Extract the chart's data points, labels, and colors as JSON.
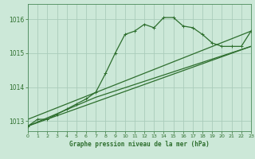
{
  "title": "Graphe pression niveau de la mer (hPa)",
  "background_color": "#cce8d8",
  "plot_bg_color": "#cce8d8",
  "grid_color": "#aaccbb",
  "line_color": "#2d6e2d",
  "spine_color": "#4a8a5a",
  "x_min": 0,
  "x_max": 23,
  "y_min": 1012.7,
  "y_max": 1016.45,
  "yticks": [
    1013,
    1014,
    1015,
    1016
  ],
  "xticks": [
    0,
    1,
    2,
    3,
    4,
    5,
    6,
    7,
    8,
    9,
    10,
    11,
    12,
    13,
    14,
    15,
    16,
    17,
    18,
    19,
    20,
    21,
    22,
    23
  ],
  "series1_x": [
    0,
    1,
    2,
    3,
    4,
    5,
    6,
    7,
    8,
    9,
    10,
    11,
    12,
    13,
    14,
    15,
    16,
    17,
    18,
    19,
    20,
    21,
    22,
    23
  ],
  "series1_y": [
    1012.85,
    1013.05,
    1013.05,
    1013.2,
    1013.35,
    1013.5,
    1013.65,
    1013.85,
    1014.4,
    1015.0,
    1015.55,
    1015.65,
    1015.85,
    1015.75,
    1016.05,
    1016.05,
    1015.8,
    1015.75,
    1015.55,
    1015.3,
    1015.2,
    1015.2,
    1015.2,
    1015.65
  ],
  "series2_x": [
    0,
    23
  ],
  "series2_y": [
    1013.05,
    1015.65
  ],
  "series3_x": [
    0,
    23
  ],
  "series3_y": [
    1012.85,
    1015.2
  ],
  "series4_x": [
    0,
    7,
    23
  ],
  "series4_y": [
    1012.85,
    1013.7,
    1015.2
  ]
}
